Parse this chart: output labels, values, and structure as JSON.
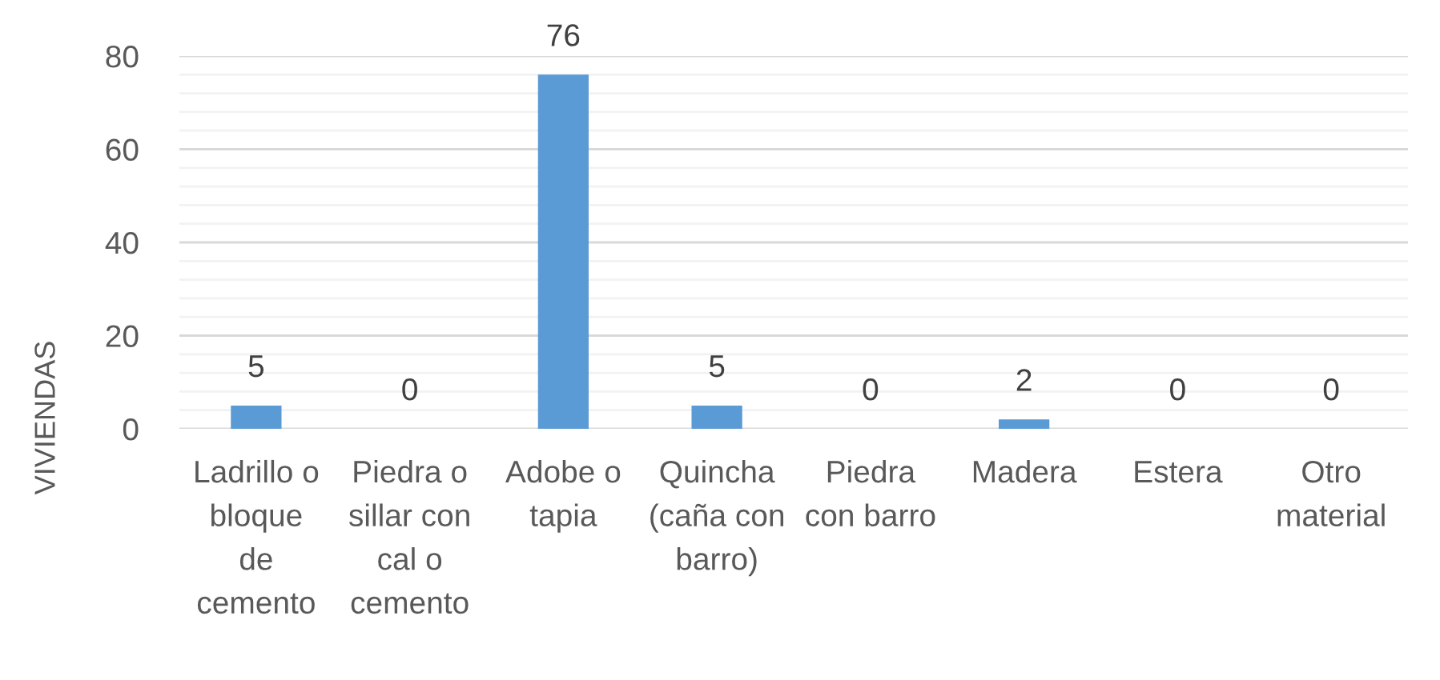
{
  "chart_data": {
    "type": "bar",
    "ylabel": "VIVIENDAS",
    "categories": [
      "Ladrillo o\nbloque\nde\ncemento",
      "Piedra o\nsillar con\ncal o\ncemento",
      "Adobe o\ntapia",
      "Quincha\n(caña con\nbarro)",
      "Piedra\ncon barro",
      "Madera",
      "Estera",
      "Otro\nmaterial"
    ],
    "values": [
      5,
      0,
      76,
      5,
      0,
      2,
      0,
      0
    ],
    "color": "#5b9bd5",
    "ylim": [
      0,
      80
    ],
    "yticks": [
      0,
      {
        "value": 4,
        "label": null
      },
      {
        "value": 8,
        "label": null
      },
      {
        "value": 12,
        "label": null
      },
      {
        "value": 16,
        "label": null
      },
      20,
      {
        "value": 24,
        "label": null
      },
      {
        "value": 28,
        "label": null
      },
      {
        "value": 32,
        "label": null
      },
      {
        "value": 36,
        "label": null
      },
      40,
      {
        "value": 44,
        "label": null
      },
      {
        "value": 48,
        "label": null
      },
      {
        "value": 52,
        "label": null
      },
      {
        "value": 56,
        "label": null
      },
      60,
      {
        "value": 64,
        "label": null
      },
      {
        "value": 68,
        "label": null
      },
      {
        "value": 72,
        "label": null
      },
      {
        "value": 76,
        "label": null
      },
      80
    ],
    "grid": "y",
    "data_labels": true
  }
}
